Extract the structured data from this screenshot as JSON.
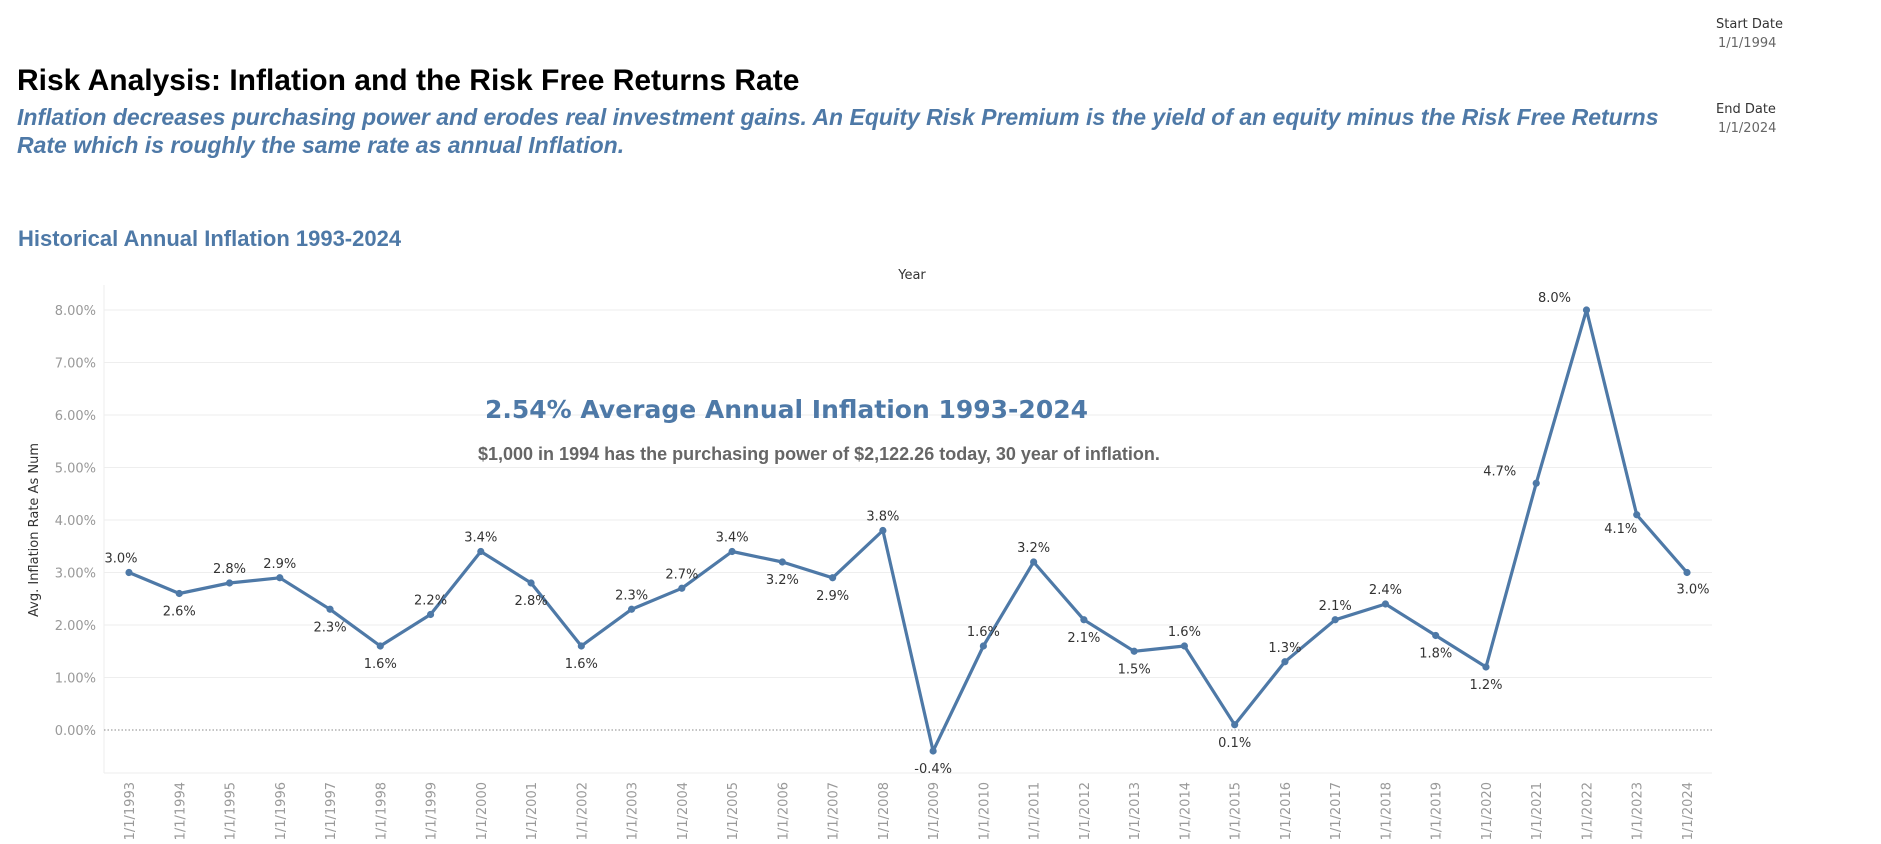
{
  "header": {
    "title": "Risk Analysis: Inflation and the Risk Free Returns Rate",
    "subtitle": "Inflation decreases purchasing power and erodes real investment gains. An Equity Risk Premium is the yield of an equity minus the Risk Free Returns Rate which is roughly the same rate as annual Inflation."
  },
  "filters": {
    "start": {
      "label": "Start Date",
      "value": "1/1/1994"
    },
    "end": {
      "label": "End Date",
      "value": "1/1/2024"
    }
  },
  "chart_heading": "Historical Annual Inflation 1993-2024",
  "colors": {
    "accent": "#4e79a7",
    "grid": "#eeeeee",
    "zero_line": "#888888"
  },
  "chart_data": {
    "type": "line",
    "title": "Year",
    "xlabel": "",
    "ylabel": "Avg. Inflation Rate As Num",
    "ylim": [
      -0.8,
      8.4
    ],
    "y_ticks": [
      "8.00%",
      "7.00%",
      "6.00%",
      "5.00%",
      "4.00%",
      "3.00%",
      "2.00%",
      "1.00%",
      "0.00%"
    ],
    "y_tick_values": [
      8,
      7,
      6,
      5,
      4,
      3,
      2,
      1,
      0
    ],
    "grid": true,
    "zero_line": "dotted",
    "x": [
      "1/1/1993",
      "1/1/1994",
      "1/1/1995",
      "1/1/1996",
      "1/1/1997",
      "1/1/1998",
      "1/1/1999",
      "1/1/2000",
      "1/1/2001",
      "1/1/2002",
      "1/1/2003",
      "1/1/2004",
      "1/1/2005",
      "1/1/2006",
      "1/1/2007",
      "1/1/2008",
      "1/1/2009",
      "1/1/2010",
      "1/1/2011",
      "1/1/2012",
      "1/1/2013",
      "1/1/2014",
      "1/1/2015",
      "1/1/2016",
      "1/1/2017",
      "1/1/2018",
      "1/1/2019",
      "1/1/2020",
      "1/1/2021",
      "1/1/2022",
      "1/1/2023",
      "1/1/2024"
    ],
    "values": [
      3.0,
      2.6,
      2.8,
      2.9,
      2.3,
      1.6,
      2.2,
      3.4,
      2.8,
      1.6,
      2.3,
      2.7,
      3.4,
      3.2,
      2.9,
      3.8,
      -0.4,
      1.6,
      3.2,
      2.1,
      1.5,
      1.6,
      0.1,
      1.3,
      2.1,
      2.4,
      1.8,
      1.2,
      4.7,
      8.0,
      4.1,
      3.0
    ],
    "labels": [
      "3.0%",
      "2.6%",
      "2.8%",
      "2.9%",
      "2.3%",
      "1.6%",
      "2.2%",
      "3.4%",
      "2.8%",
      "1.6%",
      "2.3%",
      "2.7%",
      "3.4%",
      "3.2%",
      "2.9%",
      "3.8%",
      "-0.4%",
      "1.6%",
      "3.2%",
      "2.1%",
      "1.5%",
      "1.6%",
      "0.1%",
      "1.3%",
      "2.1%",
      "2.4%",
      "1.8%",
      "1.2%",
      "4.7%",
      "8.0%",
      "4.1%",
      "3.0%"
    ],
    "annotations": [
      "2.54% Average Annual Inflation 1993-2024",
      "$1,000 in 1994 has the purchasing power of $2,122.26 today, 30 year of inflation."
    ]
  }
}
